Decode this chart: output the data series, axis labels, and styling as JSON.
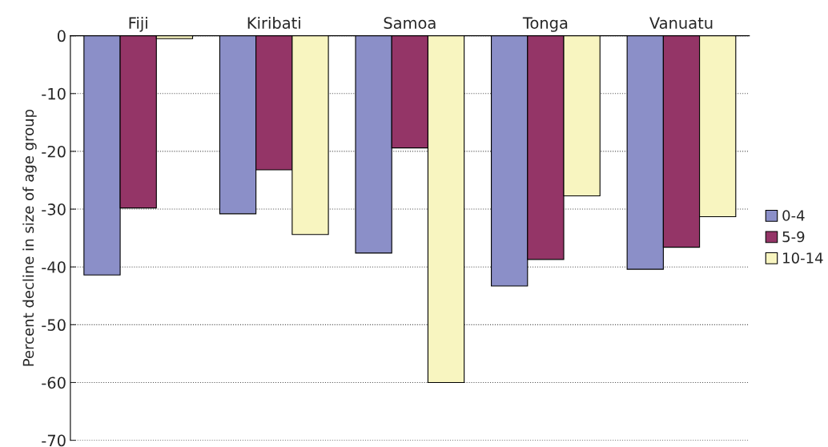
{
  "chart_data": {
    "type": "bar",
    "ylabel": "Percent decline in size of age group",
    "categories": [
      "Fiji",
      "Kiribati",
      "Samoa",
      "Tonga",
      "Vanuatu"
    ],
    "series": [
      {
        "name": "0-4",
        "color": "#8b8fc8",
        "values": [
          -41.4,
          -30.8,
          -37.6,
          -43.3,
          -40.4
        ]
      },
      {
        "name": "5-9",
        "color": "#943567",
        "values": [
          -29.8,
          -23.2,
          -19.4,
          -38.7,
          -36.6
        ]
      },
      {
        "name": "10-14",
        "color": "#f8f5c0",
        "values": [
          -0.5,
          -34.4,
          -60,
          -27.7,
          -31.3
        ]
      }
    ],
    "ylim": [
      -70,
      0
    ],
    "yticks": [
      -70,
      -60,
      -50,
      -40,
      -30,
      -20,
      -10,
      0
    ],
    "grid": "y",
    "legend": "right"
  }
}
